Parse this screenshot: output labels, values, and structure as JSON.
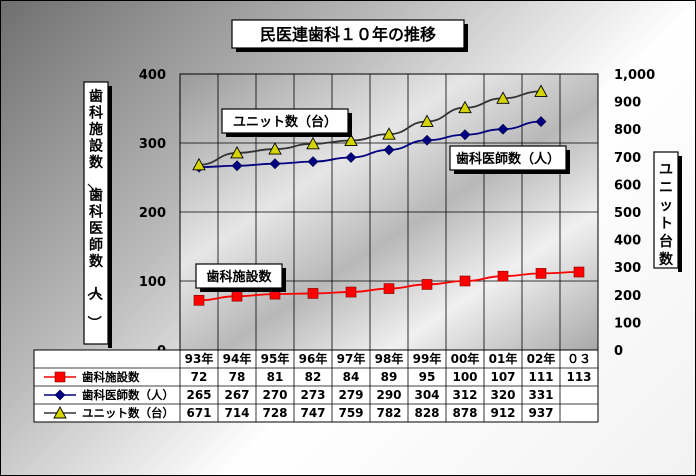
{
  "chart_data": {
    "type": "line",
    "title": "民医連歯科１０年の推移",
    "categories": [
      "93年",
      "94年",
      "95年",
      "96年",
      "97年",
      "98年",
      "99年",
      "00年",
      "01年",
      "02年",
      "０３"
    ],
    "y_left": {
      "label": "歯科施設数／歯科医師数（人）",
      "range": [
        0,
        400
      ],
      "ticks": [
        "0",
        "100",
        "200",
        "300",
        "400"
      ]
    },
    "y_right": {
      "label": "ユニット台数",
      "range": [
        0,
        1000
      ],
      "ticks": [
        "0",
        "100",
        "200",
        "300",
        "400",
        "500",
        "600",
        "700",
        "800",
        "900",
        "1,000"
      ]
    },
    "series": [
      {
        "name": "歯科施設数",
        "axis": "left",
        "color": "#ff0000",
        "marker": "square",
        "values": [
          72,
          78,
          81,
          82,
          84,
          89,
          95,
          100,
          107,
          111,
          113
        ]
      },
      {
        "name": "歯科医師数（人）",
        "axis": "left",
        "color": "#000080",
        "marker": "diamond",
        "values": [
          265,
          267,
          270,
          273,
          279,
          290,
          304,
          312,
          320,
          331,
          null
        ]
      },
      {
        "name": "ユニット数（台）",
        "axis": "right",
        "color": "#333333",
        "marker": "triangle",
        "values": [
          671,
          714,
          728,
          747,
          759,
          782,
          828,
          878,
          912,
          937,
          null
        ]
      }
    ],
    "annotations": [
      "ユニット数（台）",
      "歯科医師数（人）",
      "歯科施設数"
    ],
    "grid": true,
    "legend": "table-bottom"
  }
}
